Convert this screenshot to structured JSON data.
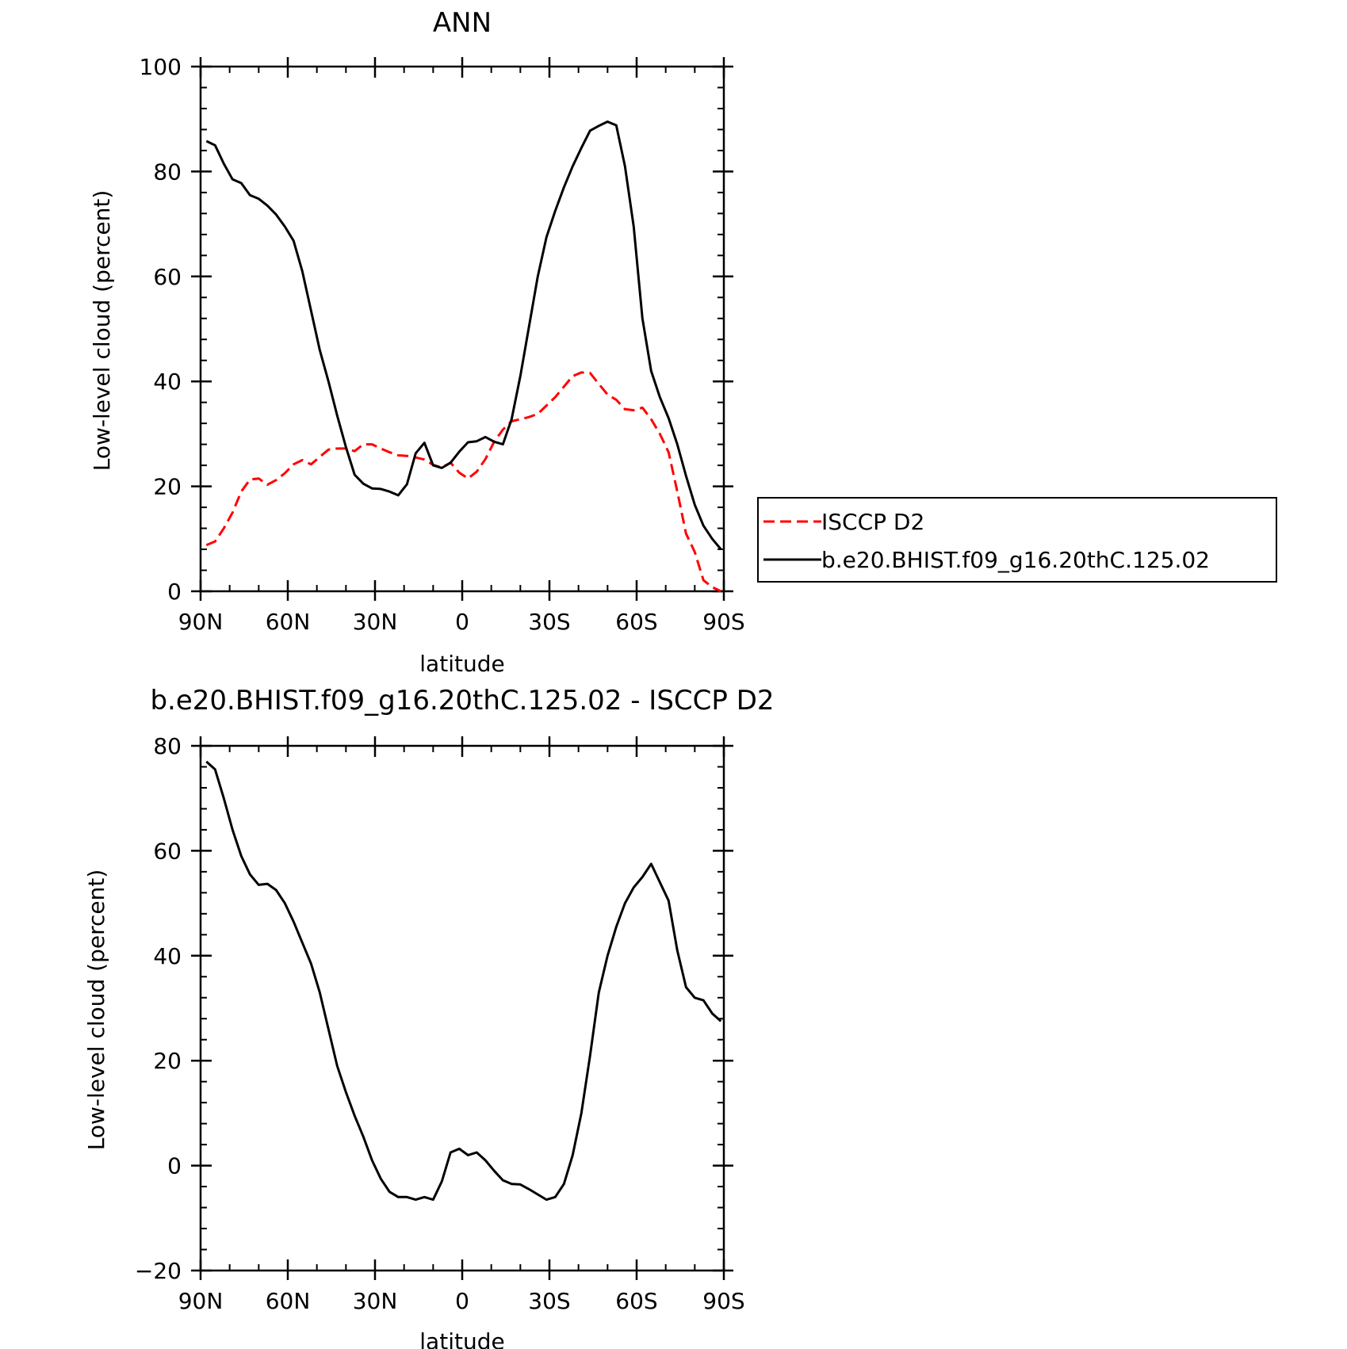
{
  "chart_data": [
    {
      "type": "line",
      "title": "ANN",
      "xlabel": "latitude",
      "ylabel": "Low-level cloud (percent)",
      "xlim": [
        90,
        -90
      ],
      "ylim": [
        0,
        100
      ],
      "xticks": [
        {
          "value": 90,
          "label": "90N"
        },
        {
          "value": 60,
          "label": "60N"
        },
        {
          "value": 30,
          "label": "30N"
        },
        {
          "value": 0,
          "label": "0"
        },
        {
          "value": -30,
          "label": "30S"
        },
        {
          "value": -60,
          "label": "60S"
        },
        {
          "value": -90,
          "label": "90S"
        }
      ],
      "yticks": [
        {
          "value": 0,
          "label": "0"
        },
        {
          "value": 20,
          "label": "20"
        },
        {
          "value": 40,
          "label": "40"
        },
        {
          "value": 60,
          "label": "60"
        },
        {
          "value": 80,
          "label": "80"
        },
        {
          "value": 100,
          "label": "100"
        }
      ],
      "legend_position": "right",
      "series": [
        {
          "name": "ISCCP D2",
          "color": "#ff0000",
          "dash": "dashed",
          "x": [
            88,
            85,
            82,
            79,
            76,
            73,
            70,
            67,
            64,
            61,
            58,
            55,
            52,
            49,
            46,
            43,
            40,
            37,
            34,
            31,
            28,
            25,
            22,
            19,
            16,
            13,
            10,
            7,
            4,
            1,
            -2,
            -5,
            -8,
            -11,
            -14,
            -17,
            -20,
            -23,
            -26,
            -29,
            -32,
            -35,
            -38,
            -41,
            -44,
            -47,
            -50,
            -53,
            -56,
            -59,
            -62,
            -65,
            -68,
            -71,
            -74,
            -77,
            -80,
            -83,
            -86,
            -89
          ],
          "y": [
            8.8,
            9.5,
            12,
            15,
            19,
            21.3,
            21.5,
            20.3,
            21.2,
            22.5,
            24.2,
            25,
            24.2,
            25.6,
            27,
            27.2,
            27.2,
            26.7,
            28,
            28,
            27.2,
            26.5,
            25.9,
            25.8,
            25.5,
            25.1,
            24.1,
            23.6,
            24.5,
            22.6,
            21.5,
            22.8,
            25.2,
            28.5,
            30.8,
            32.4,
            32.8,
            33.2,
            33.8,
            35.4,
            37,
            39,
            41,
            41.7,
            41.6,
            39.5,
            37.5,
            36.5,
            34.7,
            34.5,
            35,
            32.8,
            30,
            26.5,
            19,
            11,
            7.5,
            2.1,
            0.8,
            0
          ]
        },
        {
          "name": "b.e20.BHIST.f09_g16.20thC.125.02",
          "color": "#000000",
          "dash": "solid",
          "x": [
            88,
            85,
            82,
            79,
            76,
            73,
            70,
            67,
            64,
            61,
            58,
            55,
            52,
            49,
            46,
            43,
            40,
            37,
            34,
            31,
            28,
            25,
            22,
            19,
            16,
            13,
            10,
            7,
            4,
            1,
            -2,
            -5,
            -8,
            -11,
            -14,
            -17,
            -20,
            -23,
            -26,
            -29,
            -32,
            -35,
            -38,
            -41,
            -44,
            -47,
            -50,
            -53,
            -56,
            -59,
            -62,
            -65,
            -68,
            -71,
            -74,
            -77,
            -80,
            -83,
            -86,
            -89
          ],
          "y": [
            85.8,
            85,
            81.5,
            78.5,
            77.8,
            75.5,
            74.8,
            73.5,
            71.8,
            69.5,
            66.8,
            61,
            53.5,
            46,
            40,
            33.5,
            27.5,
            22.2,
            20.5,
            19.6,
            19.5,
            19,
            18.3,
            20.4,
            26.3,
            28.3,
            24,
            23.5,
            24.5,
            26.6,
            28.4,
            28.6,
            29.4,
            28.5,
            28,
            32.8,
            41,
            50.5,
            60,
            67.5,
            72.5,
            77,
            81,
            84.5,
            87.8,
            88.7,
            89.5,
            88.8,
            81,
            69.5,
            52,
            42,
            37,
            33,
            28,
            22,
            16.5,
            12.5,
            10,
            8
          ]
        }
      ]
    },
    {
      "type": "line",
      "title": "b.e20.BHIST.f09_g16.20thC.125.02 - ISCCP D2",
      "xlabel": "latitude",
      "ylabel": "Low-level cloud (percent)",
      "xlim": [
        90,
        -90
      ],
      "ylim": [
        -20,
        80
      ],
      "xticks": [
        {
          "value": 90,
          "label": "90N"
        },
        {
          "value": 60,
          "label": "60N"
        },
        {
          "value": 30,
          "label": "30N"
        },
        {
          "value": 0,
          "label": "0"
        },
        {
          "value": -30,
          "label": "30S"
        },
        {
          "value": -60,
          "label": "60S"
        },
        {
          "value": -90,
          "label": "90S"
        }
      ],
      "yticks": [
        {
          "value": -20,
          "label": "−20"
        },
        {
          "value": 0,
          "label": "0"
        },
        {
          "value": 20,
          "label": "20"
        },
        {
          "value": 40,
          "label": "40"
        },
        {
          "value": 60,
          "label": "60"
        },
        {
          "value": 80,
          "label": "80"
        }
      ],
      "series": [
        {
          "color": "#000000",
          "dash": "solid",
          "x": [
            88,
            85,
            82,
            79,
            76,
            73,
            70,
            67,
            64,
            61,
            58,
            55,
            52,
            49,
            46,
            43,
            40,
            37,
            34,
            31,
            28,
            25,
            22,
            19,
            16,
            13,
            10,
            7,
            4,
            1,
            -2,
            -5,
            -8,
            -11,
            -14,
            -17,
            -20,
            -23,
            -26,
            -29,
            -32,
            -35,
            -38,
            -41,
            -44,
            -47,
            -50,
            -53,
            -56,
            -59,
            -62,
            -65,
            -68,
            -71,
            -74,
            -77,
            -80,
            -83,
            -86,
            -89
          ],
          "y": [
            77,
            75.5,
            70,
            64,
            59,
            55.5,
            53.5,
            53.7,
            52.5,
            50,
            46.5,
            42.5,
            38.5,
            33,
            26,
            19,
            14,
            9.5,
            5.5,
            1,
            -2.5,
            -5,
            -6,
            -6,
            -6.5,
            -6,
            -6.5,
            -3,
            2.5,
            3.2,
            2,
            2.5,
            1,
            -1,
            -2.8,
            -3.5,
            -3.6,
            -4.5,
            -5.5,
            -6.5,
            -6,
            -3.5,
            2,
            10,
            21,
            33,
            40,
            45.5,
            50,
            53,
            55,
            57.5,
            54,
            50.5,
            41,
            34,
            32,
            31.5,
            29,
            27.5
          ]
        }
      ]
    }
  ]
}
